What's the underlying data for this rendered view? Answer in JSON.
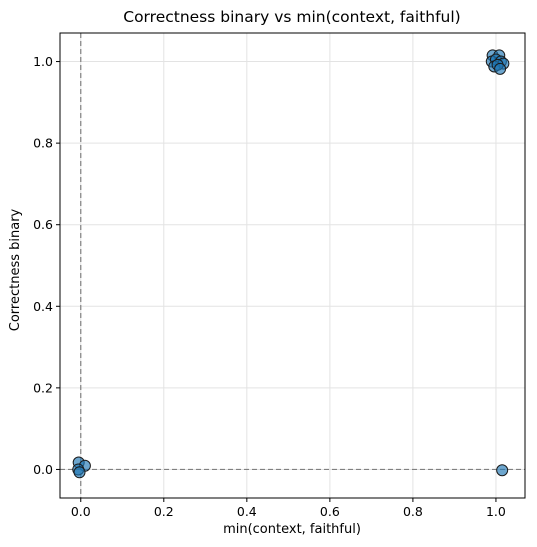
{
  "chart_data": {
    "type": "scatter",
    "title": "Correctness binary vs min(context, faithful)",
    "xlabel": "min(context, faithful)",
    "ylabel": "Correctness binary",
    "xlim": [
      -0.05,
      1.07
    ],
    "ylim": [
      -0.07,
      1.07
    ],
    "xticks": [
      "0.0",
      "0.2",
      "0.4",
      "0.6",
      "0.8",
      "1.0"
    ],
    "yticks": [
      "0.0",
      "0.2",
      "0.4",
      "0.6",
      "0.8",
      "1.0"
    ],
    "grid": true,
    "reference_lines": {
      "x": 0,
      "y": 0,
      "style": "dashed"
    },
    "marker_color": "#1f77b4",
    "points": [
      {
        "x": 0.992,
        "y": 1.015
      },
      {
        "x": 1.008,
        "y": 1.015
      },
      {
        "x": 0.99,
        "y": 1.0
      },
      {
        "x": 1.0,
        "y": 1.005
      },
      {
        "x": 1.012,
        "y": 1.0
      },
      {
        "x": 1.018,
        "y": 0.995
      },
      {
        "x": 0.996,
        "y": 0.988
      },
      {
        "x": 1.004,
        "y": 0.992
      },
      {
        "x": 1.01,
        "y": 0.982
      },
      {
        "x": -0.005,
        "y": 0.017
      },
      {
        "x": 0.01,
        "y": 0.009
      },
      {
        "x": -0.006,
        "y": 0.0
      },
      {
        "x": -0.003,
        "y": -0.007
      },
      {
        "x": 1.015,
        "y": -0.002
      }
    ]
  }
}
